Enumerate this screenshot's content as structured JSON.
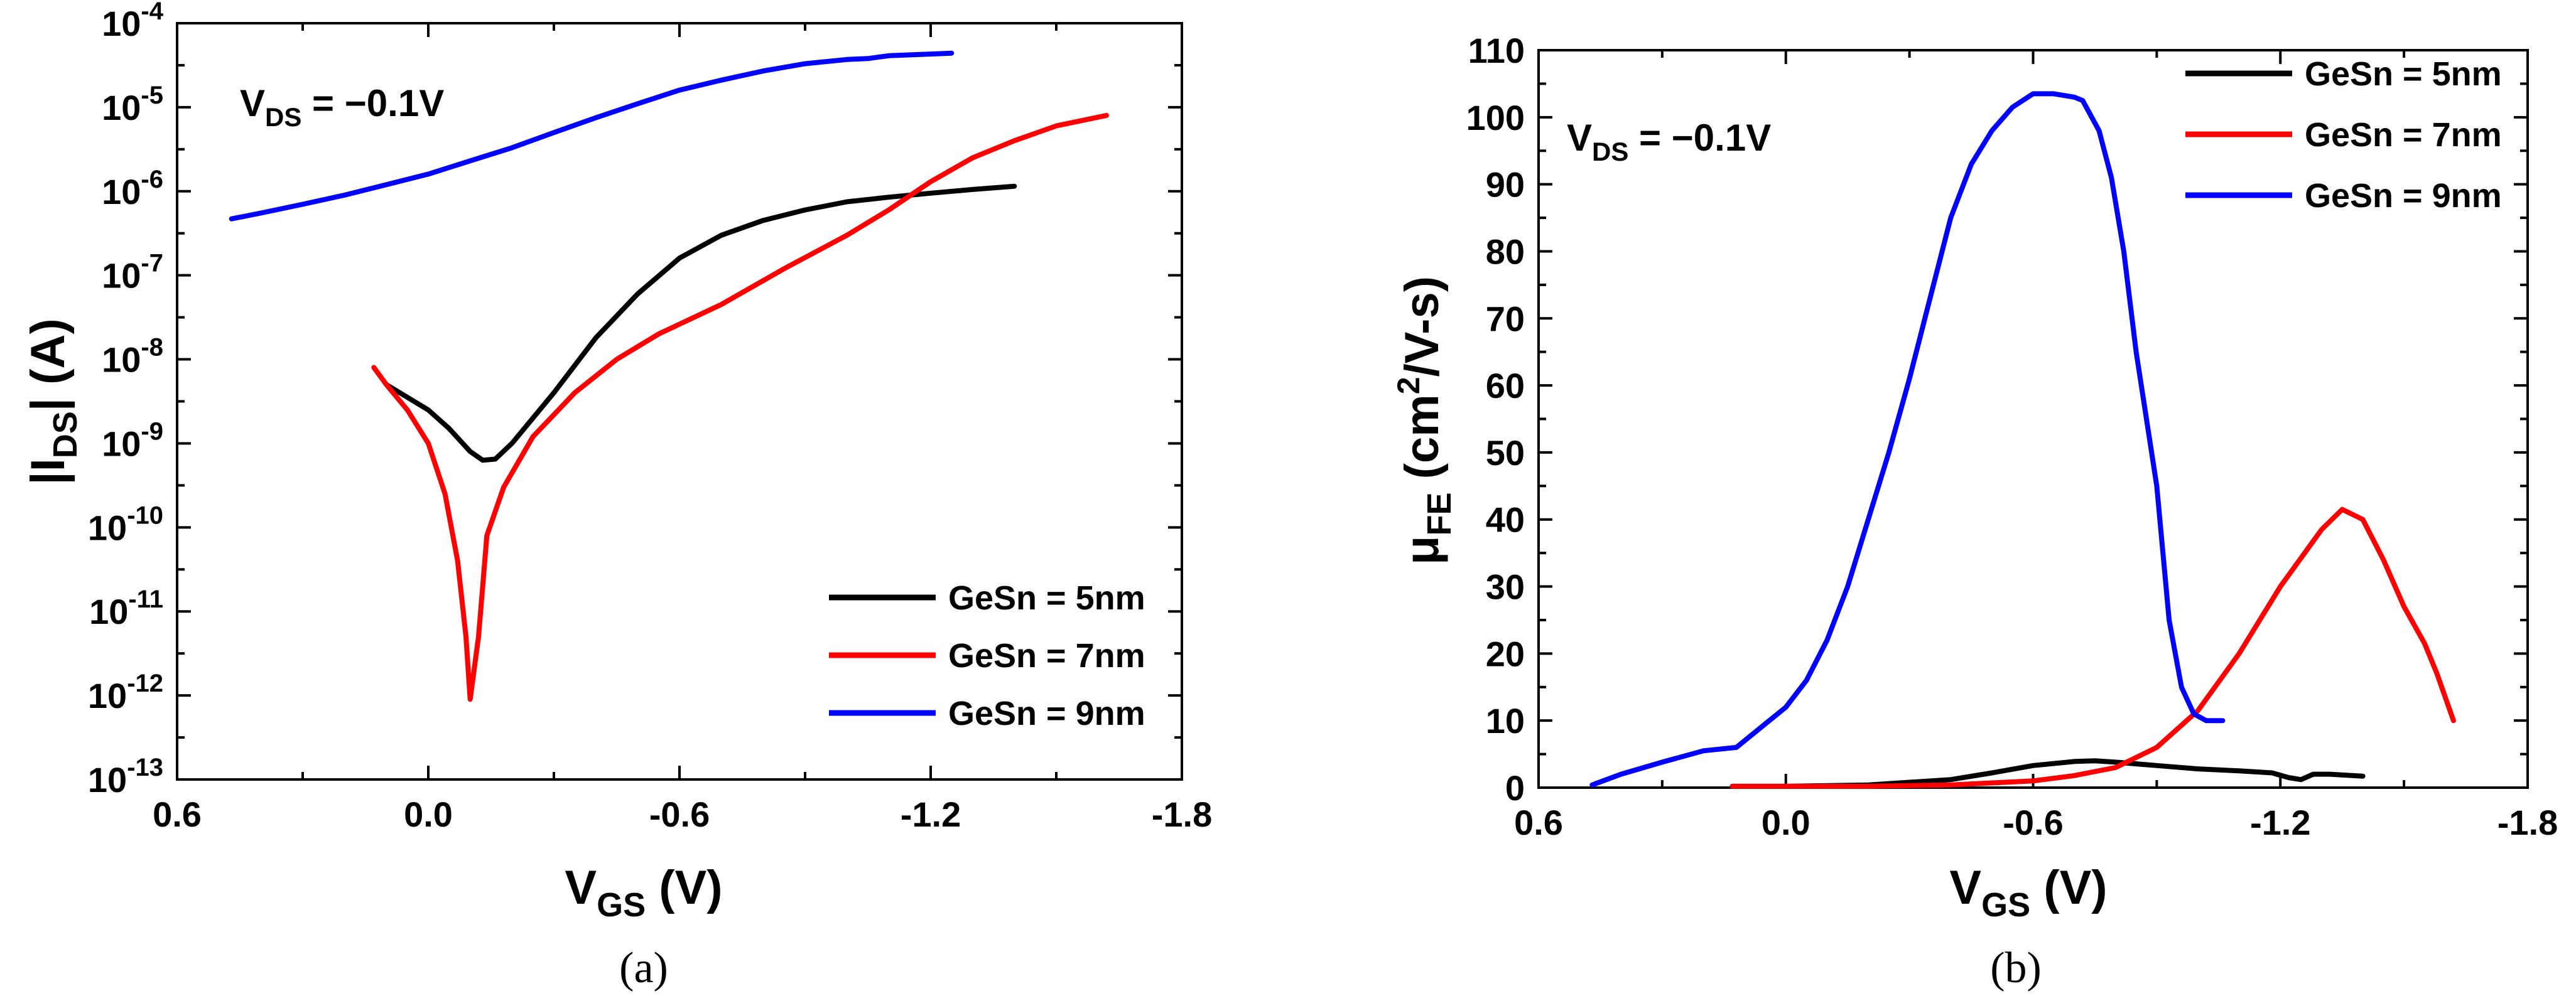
{
  "chart_data": [
    {
      "type": "line",
      "panel_label": "(a)",
      "yscale": "log",
      "annotation": {
        "prefix": "V",
        "sub": "DS",
        "suffix": " = −0.1V"
      },
      "xlabel": {
        "main": "V",
        "sub": "GS",
        "suffix": " (V)"
      },
      "ylabel": {
        "prefix": "|I",
        "sub": "DS",
        "suffix": "| (A)"
      },
      "xlim": [
        0.6,
        -1.8
      ],
      "ylim_exp": [
        -13,
        -4
      ],
      "xticks": [
        0.6,
        0.0,
        -0.6,
        -1.2,
        -1.8
      ],
      "xtick_labels": [
        "0.6",
        "0.0",
        "-0.6",
        "-1.2",
        "-1.8"
      ],
      "yticks_exp": [
        -13,
        -12,
        -11,
        -10,
        -9,
        -8,
        -7,
        -6,
        -5,
        -4
      ],
      "ytick_labels": [
        "10-13",
        "10-12",
        "10-11",
        "10-10",
        "10-9",
        "10-8",
        "10-7",
        "10-6",
        "10-5",
        "10-4"
      ],
      "legend_position": "bottom-right",
      "series": [
        {
          "name": "GeSn = 5nm",
          "color": "#000000",
          "x": [
            0.1,
            0.0,
            -0.05,
            -0.1,
            -0.13,
            -0.16,
            -0.2,
            -0.3,
            -0.4,
            -0.5,
            -0.6,
            -0.7,
            -0.8,
            -0.9,
            -1.0,
            -1.1,
            -1.2,
            -1.3,
            -1.4
          ],
          "y": [
            5e-09,
            2.5e-09,
            1.5e-09,
            8e-10,
            6.3e-10,
            6.5e-10,
            1e-09,
            4e-09,
            1.8e-08,
            6e-08,
            1.6e-07,
            3e-07,
            4.5e-07,
            6e-07,
            7.5e-07,
            8.5e-07,
            9.5e-07,
            1.05e-06,
            1.15e-06
          ]
        },
        {
          "name": "GeSn = 7nm",
          "color": "#ff0000",
          "x": [
            0.13,
            0.1,
            0.05,
            0.0,
            -0.04,
            -0.07,
            -0.09,
            -0.1,
            -0.12,
            -0.14,
            -0.18,
            -0.25,
            -0.35,
            -0.45,
            -0.55,
            -0.7,
            -0.85,
            -1.0,
            -1.1,
            -1.2,
            -1.3,
            -1.4,
            -1.5,
            -1.62
          ],
          "y": [
            8e-09,
            5e-09,
            2.5e-09,
            1e-09,
            2.5e-10,
            4e-11,
            5e-12,
            9e-13,
            5e-12,
            8e-11,
            3e-10,
            1.2e-09,
            4e-09,
            1e-08,
            2e-08,
            4.5e-08,
            1.2e-07,
            3e-07,
            6e-07,
            1.3e-06,
            2.5e-06,
            4e-06,
            6e-06,
            8e-06
          ]
        },
        {
          "name": "GeSn = 9nm",
          "color": "#0000ff",
          "x": [
            0.47,
            0.4,
            0.3,
            0.2,
            0.1,
            0.0,
            -0.1,
            -0.2,
            -0.3,
            -0.4,
            -0.5,
            -0.6,
            -0.7,
            -0.8,
            -0.9,
            -1.0,
            -1.05,
            -1.1,
            -1.2,
            -1.25
          ],
          "y": [
            4.7e-07,
            5.5e-07,
            7e-07,
            9e-07,
            1.2e-06,
            1.6e-06,
            2.3e-06,
            3.3e-06,
            5e-06,
            7.5e-06,
            1.1e-05,
            1.6e-05,
            2.1e-05,
            2.7e-05,
            3.3e-05,
            3.7e-05,
            3.8e-05,
            4.1e-05,
            4.3e-05,
            4.4e-05
          ]
        }
      ]
    },
    {
      "type": "line",
      "panel_label": "(b)",
      "yscale": "linear",
      "annotation": {
        "prefix": "V",
        "sub": "DS",
        "suffix": " = −0.1V"
      },
      "xlabel": {
        "main": "V",
        "sub": "GS",
        "suffix": " (V)"
      },
      "ylabel": {
        "mu": "μ",
        "sub": "FE",
        "prefix": " (cm",
        "sup": "2",
        "suffix": "/V-s)"
      },
      "xlim": [
        0.6,
        -1.8
      ],
      "ylim": [
        0,
        110
      ],
      "xticks": [
        0.6,
        0.0,
        -0.6,
        -1.2,
        -1.8
      ],
      "xtick_labels": [
        "0.6",
        "0.0",
        "-0.6",
        "-1.2",
        "-1.8"
      ],
      "yticks": [
        0,
        10,
        20,
        30,
        40,
        50,
        60,
        70,
        80,
        90,
        100,
        110
      ],
      "ytick_labels": [
        "0",
        "10",
        "20",
        "30",
        "40",
        "50",
        "60",
        "70",
        "80",
        "90",
        "100",
        "110"
      ],
      "legend_position": "top-right",
      "series": [
        {
          "name": "GeSn = 5nm",
          "color": "#000000",
          "x": [
            0.13,
            0.0,
            -0.2,
            -0.4,
            -0.5,
            -0.6,
            -0.7,
            -0.75,
            -0.8,
            -0.9,
            -1.0,
            -1.1,
            -1.18,
            -1.22,
            -1.25,
            -1.28,
            -1.32,
            -1.4
          ],
          "y": [
            0.2,
            0.2,
            0.4,
            1.2,
            2.2,
            3.3,
            3.9,
            4.0,
            3.8,
            3.3,
            2.8,
            2.5,
            2.2,
            1.5,
            1.2,
            2.0,
            2.0,
            1.7
          ]
        },
        {
          "name": "GeSn = 7nm",
          "color": "#ff0000",
          "x": [
            0.13,
            0.0,
            -0.2,
            -0.4,
            -0.6,
            -0.7,
            -0.8,
            -0.9,
            -1.0,
            -1.1,
            -1.2,
            -1.3,
            -1.35,
            -1.4,
            -1.45,
            -1.5,
            -1.55,
            -1.58,
            -1.62
          ],
          "y": [
            0.2,
            0.2,
            0.2,
            0.4,
            1.0,
            1.8,
            3.0,
            6.0,
            11.5,
            20.0,
            30.0,
            38.5,
            41.5,
            40.0,
            34.0,
            27.0,
            21.5,
            17.0,
            10.0
          ]
        },
        {
          "name": "GeSn = 9nm",
          "color": "#0000ff",
          "x": [
            0.47,
            0.4,
            0.3,
            0.2,
            0.12,
            0.08,
            0.05,
            0.0,
            -0.05,
            -0.1,
            -0.15,
            -0.2,
            -0.25,
            -0.3,
            -0.35,
            -0.4,
            -0.45,
            -0.5,
            -0.55,
            -0.6,
            -0.65,
            -0.7,
            -0.72,
            -0.76,
            -0.79,
            -0.82,
            -0.85,
            -0.9,
            -0.93,
            -0.96,
            -0.99,
            -1.02,
            -1.06
          ],
          "y": [
            0.4,
            2.0,
            3.8,
            5.5,
            6.0,
            8.0,
            9.5,
            12.0,
            16.0,
            22.0,
            30.0,
            40.0,
            50.0,
            61.0,
            73.0,
            85.0,
            93.0,
            98.0,
            101.5,
            103.5,
            103.5,
            103.0,
            102.5,
            98.0,
            91.0,
            80.0,
            65.0,
            45.0,
            25.0,
            15.0,
            11.0,
            10.0,
            10.0
          ]
        }
      ]
    }
  ]
}
